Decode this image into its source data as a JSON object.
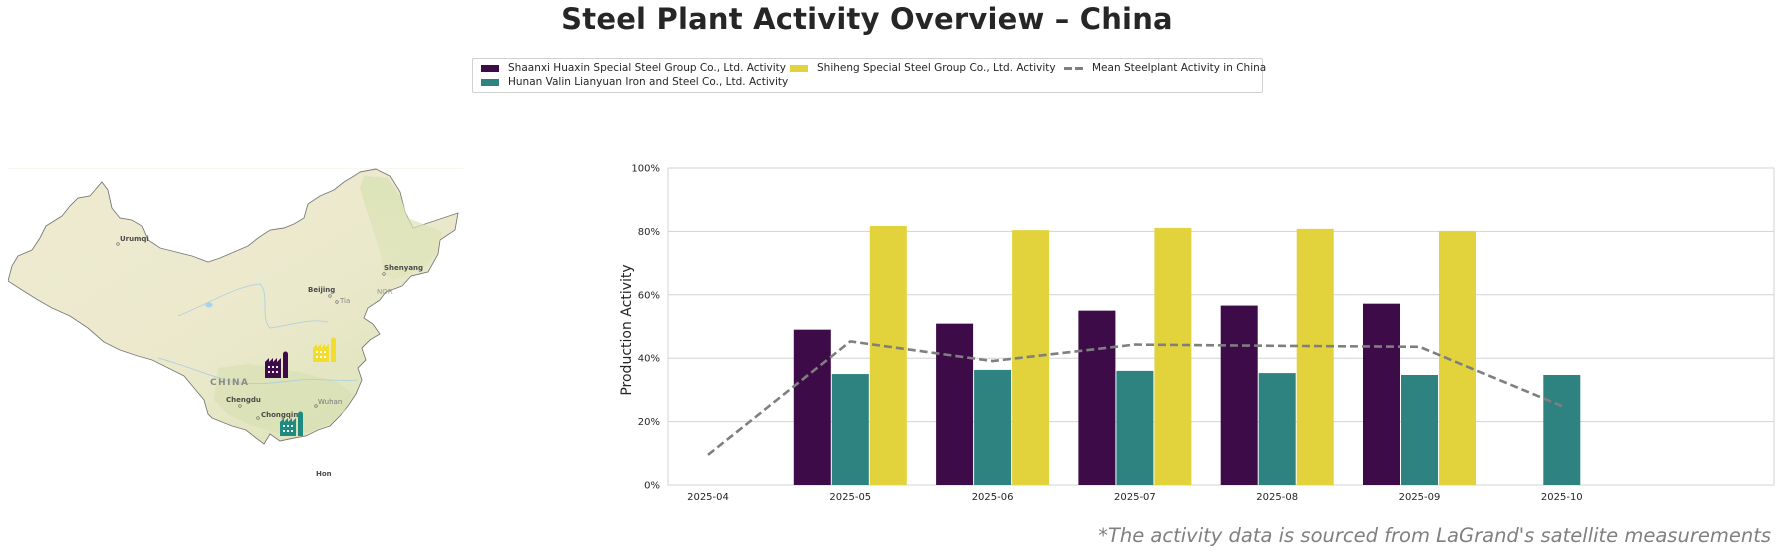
{
  "title": "Steel Plant Activity Overview – China",
  "legend": {
    "items": [
      {
        "label": "Shaanxi Huaxin Special Steel Group Co., Ltd. Activity",
        "color": "#3d0b48",
        "kind": "bar"
      },
      {
        "label": "Hunan Valin Lianyuan Iron and Steel Co., Ltd. Activity",
        "color": "#2e8380",
        "kind": "bar"
      },
      {
        "label": "Shiheng Special Steel Group Co., Ltd. Activity",
        "color": "#e2d33c",
        "kind": "bar"
      },
      {
        "label": "Mean Steelplant Activity in China",
        "color": "#7f7f7f",
        "kind": "dashed-line"
      }
    ]
  },
  "map": {
    "country_label": "CHINA",
    "cities": [
      "Urumqi",
      "Beijing",
      "Shenyang",
      "Tia",
      "NOR",
      "Chengdu",
      "Chongqing",
      "Wuhan",
      "Hon"
    ],
    "plants": [
      {
        "name": "Shaanxi Huaxin Special Steel Group Co., Ltd.",
        "color": "#3d0b48",
        "icon": "factory-icon"
      },
      {
        "name": "Shiheng Special Steel Group Co., Ltd.",
        "color": "#f2dc2e",
        "icon": "factory-icon"
      },
      {
        "name": "Hunan Valin Lianyuan Iron and Steel Co., Ltd.",
        "color": "#1f8a80",
        "icon": "factory-icon"
      }
    ]
  },
  "chart_data": {
    "type": "bar",
    "title": "",
    "xlabel": "",
    "ylabel": "Production Activity",
    "ylim": [
      0,
      100
    ],
    "yticks": [
      "0%",
      "20%",
      "40%",
      "60%",
      "80%",
      "100%"
    ],
    "grid": true,
    "legend_position": "top-center",
    "categories": [
      "2025-04",
      "2025-05",
      "2025-06",
      "2025-07",
      "2025-08",
      "2025-09",
      "2025-10"
    ],
    "series": [
      {
        "name": "Shaanxi Huaxin Special Steel Group Co., Ltd. Activity",
        "type": "bar",
        "color": "#3d0b48",
        "values": [
          null,
          49.0,
          50.9,
          55.0,
          56.6,
          57.2,
          null
        ]
      },
      {
        "name": "Hunan Valin Lianyuan Iron and Steel Co., Ltd. Activity",
        "type": "bar",
        "color": "#2e8380",
        "values": [
          null,
          35.0,
          36.3,
          36.0,
          35.3,
          34.7,
          34.7
        ]
      },
      {
        "name": "Shiheng Special Steel Group Co., Ltd. Activity",
        "type": "bar",
        "color": "#e2d33c",
        "values": [
          null,
          81.7,
          80.4,
          81.1,
          80.8,
          80.1,
          null
        ]
      },
      {
        "name": "Mean Steelplant Activity in China",
        "type": "line",
        "style": "dashed",
        "color": "#7f7f7f",
        "values": [
          9.5,
          45.3,
          39.1,
          44.3,
          43.9,
          43.6,
          24.9
        ]
      }
    ]
  },
  "footnote": "*The activity data is sourced from LaGrand's satellite measurements"
}
